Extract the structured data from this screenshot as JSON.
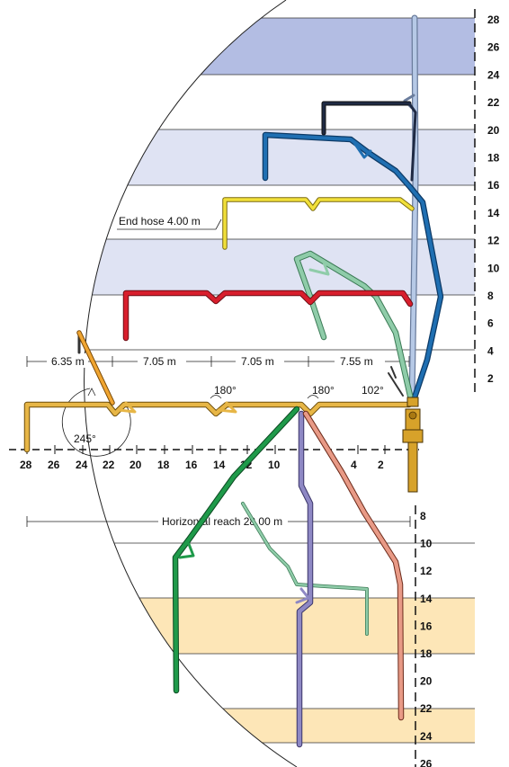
{
  "colors": {
    "band_blue": "#dfe3f3",
    "band_blue_top": "#b3bde3",
    "band_yellow": "#fde6b7",
    "boom_navy": "#1f2a44",
    "boom_blue": "#1f6fb2",
    "boom_yellow": "#f1e03a",
    "boom_green_light": "#8fcca9",
    "boom_red": "#d81e2c",
    "boom_orange": "#f0a531",
    "boom_tan": "#e7b646",
    "boom_green": "#1f9a4a",
    "boom_violet": "#8e88c4",
    "boom_salmon": "#e89a86",
    "boom_light": "#b6c9e6",
    "mast": "#d7a22a"
  },
  "axis_right_upper": {
    "labels": [
      "28",
      "26",
      "24",
      "22",
      "20",
      "18",
      "16",
      "14",
      "12",
      "10",
      "8",
      "6",
      "4",
      "2"
    ]
  },
  "axis_right_lower": {
    "labels": [
      "8",
      "10",
      "12",
      "14",
      "16",
      "18",
      "20",
      "22",
      "24",
      "26"
    ]
  },
  "axis_bottom": {
    "labels": [
      "28",
      "26",
      "24",
      "22",
      "20",
      "18",
      "16",
      "14",
      "12",
      "10",
      "4",
      "2"
    ]
  },
  "annotations": {
    "end_hose": "End hose 4.00 m",
    "horizontal_reach": "Horizontal reach 28.00 m",
    "dim_1": "6.35 m",
    "dim_2": "7.05 m",
    "dim_3": "7.05 m",
    "dim_4": "7.55 m",
    "angle_1": "180°",
    "angle_2": "180°",
    "angle_3": "102°",
    "angle_4": "245°"
  }
}
